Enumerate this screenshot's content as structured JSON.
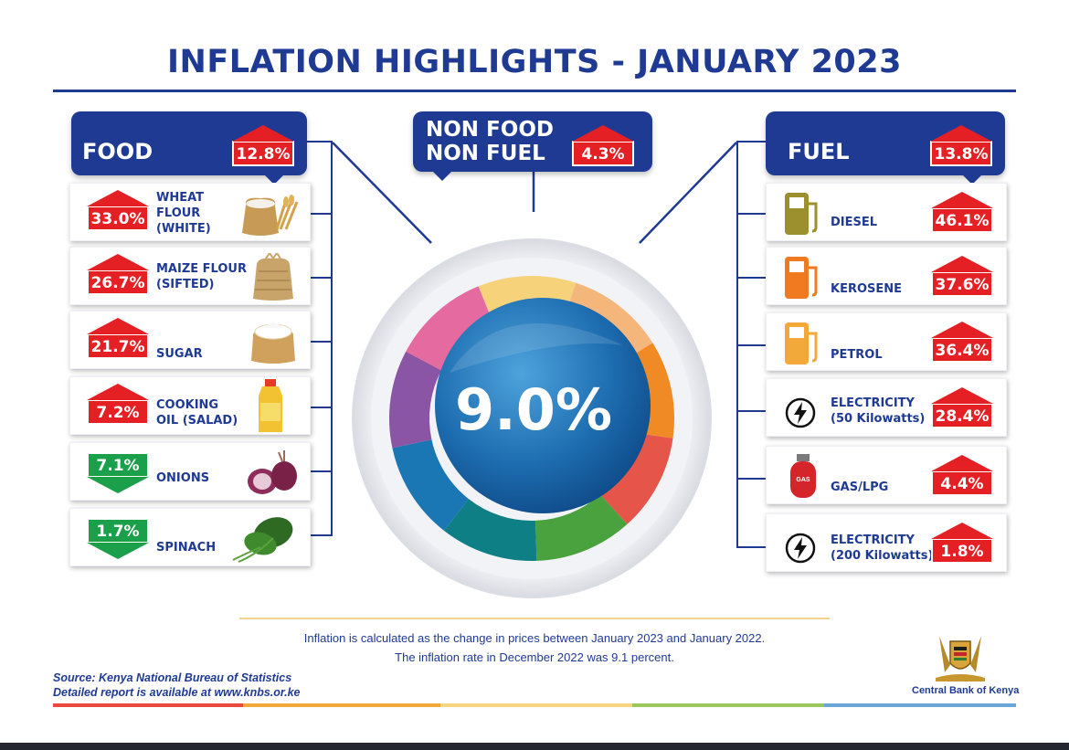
{
  "title": "INFLATION HIGHLIGHTS - JANUARY 2023",
  "headline_rate": "9.0%",
  "groups": {
    "food": {
      "label": "FOOD",
      "rate": "12.8%",
      "direction": "up"
    },
    "nonfood": {
      "label_line1": "NON FOOD",
      "label_line2": "NON FUEL",
      "rate": "4.3%",
      "direction": "up"
    },
    "fuel": {
      "label": "FUEL",
      "rate": "13.8%",
      "direction": "up"
    }
  },
  "food_items": [
    {
      "name_lines": [
        "WHEAT",
        "FLOUR",
        "(WHITE)"
      ],
      "rate": "33.0%",
      "direction": "up",
      "icon": "flour-sack-icon"
    },
    {
      "name_lines": [
        "MAIZE FLOUR",
        "(SIFTED)"
      ],
      "rate": "26.7%",
      "direction": "up",
      "icon": "maize-flour-sack-icon"
    },
    {
      "name_lines": [
        "SUGAR"
      ],
      "rate": "21.7%",
      "direction": "up",
      "icon": "sugar-sack-icon"
    },
    {
      "name_lines": [
        "COOKING",
        "OIL (SALAD)"
      ],
      "rate": "7.2%",
      "direction": "up",
      "icon": "oil-bottle-icon"
    },
    {
      "name_lines": [
        "ONIONS"
      ],
      "rate": "7.1%",
      "direction": "down",
      "icon": "onion-icon"
    },
    {
      "name_lines": [
        "SPINACH"
      ],
      "rate": "1.7%",
      "direction": "down",
      "icon": "spinach-icon"
    }
  ],
  "fuel_items": [
    {
      "name_lines": [
        "DIESEL"
      ],
      "rate": "46.1%",
      "direction": "up",
      "icon": "fuel-pump-icon",
      "icon_color": "#9c8f2e"
    },
    {
      "name_lines": [
        "KEROSENE"
      ],
      "rate": "37.6%",
      "direction": "up",
      "icon": "fuel-pump-icon",
      "icon_color": "#f07a1f"
    },
    {
      "name_lines": [
        "PETROL"
      ],
      "rate": "36.4%",
      "direction": "up",
      "icon": "fuel-pump-icon",
      "icon_color": "#f2a93a"
    },
    {
      "name_lines": [
        "ELECTRICITY",
        "(50 Kilowatts)"
      ],
      "rate": "28.4%",
      "direction": "up",
      "icon": "lightning-icon"
    },
    {
      "name_lines": [
        "GAS/LPG"
      ],
      "rate": "4.4%",
      "direction": "up",
      "icon": "gas-cylinder-icon"
    },
    {
      "name_lines": [
        "ELECTRICITY",
        "(200 Kilowatts)"
      ],
      "rate": "1.8%",
      "direction": "up",
      "icon": "lightning-icon"
    }
  ],
  "gas_cylinder_label": "GAS",
  "footer": {
    "note_line1": "Inflation is calculated as the change in prices between January 2023 and January 2022.",
    "note_line2": "The inflation rate in December 2022 was 9.1 percent.",
    "source_line1": "Source: Kenya National Bureau of Statistics",
    "source_line2": "Detailed report is available at www.knbs.or.ke",
    "publisher": "Central Bank of Kenya"
  },
  "colors": {
    "brand_blue": "#1f3a93",
    "increase_red": "#e42024",
    "decrease_green": "#1aa04a",
    "dial_segments": [
      "#f6d37a",
      "#f5b67c",
      "#f08a24",
      "#e5554a",
      "#4aa23f",
      "#0f7f86",
      "#1b76b4",
      "#8b55a5",
      "#e56aa0"
    ]
  }
}
